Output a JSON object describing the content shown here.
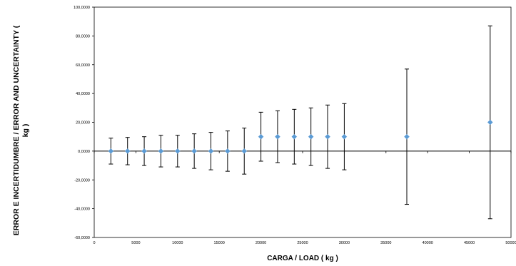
{
  "chart_data": {
    "type": "scatter",
    "xlabel": "CARGA / LOAD ( kg )",
    "ylabel": "ERROR E INCERTIDUMBRE / ERROR AND UNCERTAINTY ( kg )",
    "xlim": [
      0,
      50000
    ],
    "ylim": [
      -60,
      100
    ],
    "x_ticks": [
      0,
      5000,
      10000,
      15000,
      20000,
      25000,
      30000,
      35000,
      40000,
      45000,
      50000
    ],
    "x_tick_labels": [
      "0",
      "5000",
      "10000",
      "15000",
      "20000",
      "25000",
      "30000",
      "35000",
      "40000",
      "45000",
      "50000"
    ],
    "y_ticks": [
      -60,
      -40,
      -20,
      0,
      20,
      40,
      60,
      80,
      100
    ],
    "y_tick_labels": [
      "-60,0000",
      "-40,0000",
      "-20,0000",
      "0,0000",
      "20,0000",
      "40,0000",
      "60,0000",
      "80,0000",
      "100,0000"
    ],
    "grid": false,
    "marker_color": "#5b9bd5",
    "series": [
      {
        "points": [
          {
            "x": 2000,
            "y": 0,
            "err": 9
          },
          {
            "x": 4000,
            "y": 0,
            "err": 9.5
          },
          {
            "x": 6000,
            "y": 0,
            "err": 10
          },
          {
            "x": 8000,
            "y": 0,
            "err": 11
          },
          {
            "x": 10000,
            "y": 0,
            "err": 11
          },
          {
            "x": 12000,
            "y": 0,
            "err": 12
          },
          {
            "x": 14000,
            "y": 0,
            "err": 13
          },
          {
            "x": 16000,
            "y": 0,
            "err": 14
          },
          {
            "x": 18000,
            "y": 0,
            "err": 16
          },
          {
            "x": 20000,
            "y": 10,
            "err": 17
          },
          {
            "x": 22000,
            "y": 10,
            "err": 18
          },
          {
            "x": 24000,
            "y": 10,
            "err": 19
          },
          {
            "x": 26000,
            "y": 10,
            "err": 20
          },
          {
            "x": 28000,
            "y": 10,
            "err": 22
          },
          {
            "x": 30000,
            "y": 10,
            "err": 23
          },
          {
            "x": 37500,
            "y": 10,
            "err": 47
          },
          {
            "x": 47500,
            "y": 20,
            "err": 67
          }
        ]
      }
    ]
  }
}
